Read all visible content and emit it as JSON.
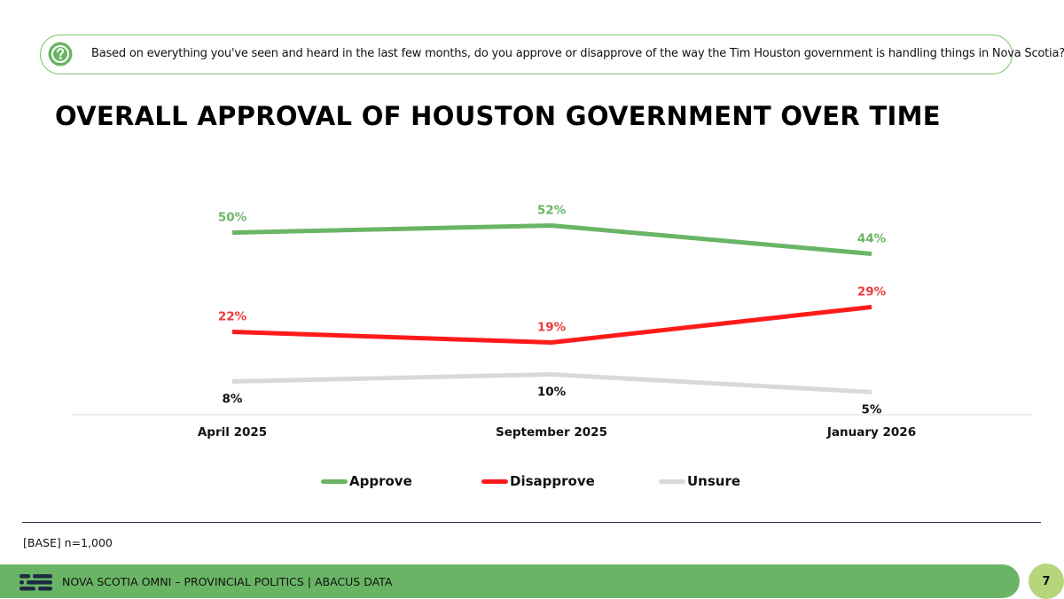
{
  "question": {
    "text": "Based on everything you've seen and heard in the last few months, do you approve or disapprove of the way the Tim Houston government is handling things in Nova Scotia?"
  },
  "chart_data": {
    "type": "line",
    "title": "OVERALL APPROVAL OF HOUSTON GOVERNMENT OVER TIME",
    "categories": [
      "April 2025",
      "September 2025",
      "January 2026"
    ],
    "series": [
      {
        "name": "Approve",
        "values": [
          50,
          52,
          44
        ],
        "labels": [
          "50%",
          "52%",
          "44%"
        ],
        "color": "#6ab565",
        "label_color": "#6ab565",
        "label_pos": "above"
      },
      {
        "name": "Disapprove",
        "values": [
          22,
          19,
          29
        ],
        "labels": [
          "22%",
          "19%",
          "29%"
        ],
        "color": "#ff1a1a",
        "label_color": "#ee3b3b",
        "label_pos": "above"
      },
      {
        "name": "Unsure",
        "values": [
          8,
          10,
          5
        ],
        "labels": [
          "8%",
          "10%",
          "5%"
        ],
        "color": "#d9d9d9",
        "label_color": "#111111",
        "label_pos": "below"
      }
    ],
    "ylim": [
      0,
      60
    ],
    "xlabel": "",
    "ylabel": "",
    "grid": false,
    "legend": "bottom"
  },
  "footer": {
    "base_note": "[BASE] n=1,000",
    "source": "NOVA SCOTIA OMNI – PROVINCIAL POLITICS  |  ABACUS DATA",
    "page_number": "7"
  },
  "colors": {
    "brand_green": "#6ab565",
    "page_badge": "#b5d67a",
    "question_border": "#7cc36c"
  }
}
